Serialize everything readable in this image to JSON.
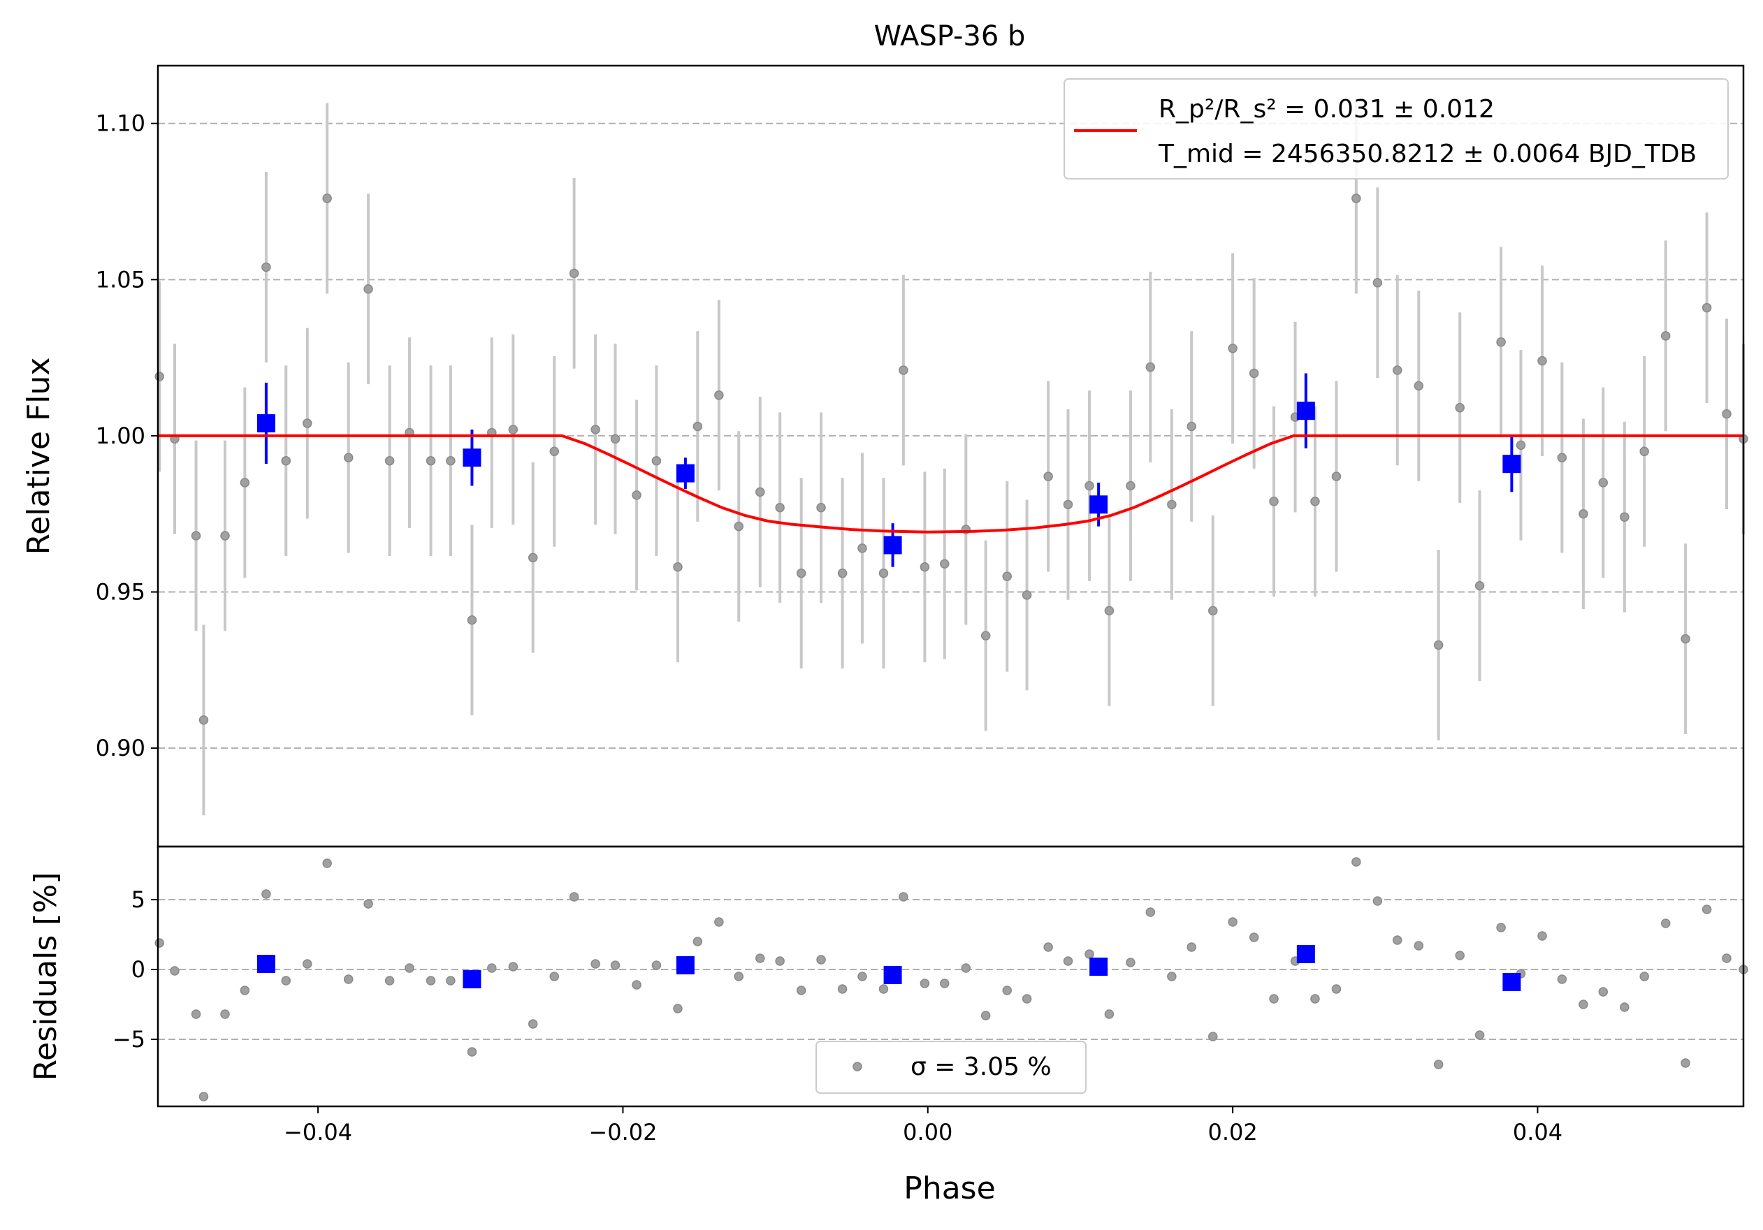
{
  "chart_data": [
    {
      "type": "scatter",
      "title": "WASP-36 b",
      "xlabel": "",
      "ylabel": "Relative Flux",
      "xlim": [
        -0.0505,
        0.0535
      ],
      "ylim": [
        0.8685,
        1.1185
      ],
      "yticks": [
        0.9,
        0.95,
        1.0,
        1.05,
        1.1
      ],
      "ytick_labels": [
        "0.90",
        "0.95",
        "1.00",
        "1.05",
        "1.10"
      ],
      "grid": "horizontal dashed",
      "legend_position": "upper right",
      "legend_lines": [
        "R_p²/R_s² = 0.031 ± 0.012",
        "T_mid = 2456350.8212 ± 0.0064 BJD_TDB"
      ],
      "colors": {
        "data": "#808080",
        "errorbar": "#c8c8c8",
        "binned": "#0000ff",
        "model": "#ff0000"
      },
      "series": [
        {
          "kind": "raw",
          "error": 0.0305,
          "points": [
            [
              -0.0504,
              1.019
            ],
            [
              -0.0494,
              0.999
            ],
            [
              -0.048,
              0.968
            ],
            [
              -0.0475,
              0.909
            ],
            [
              -0.0461,
              0.968
            ],
            [
              -0.0448,
              0.985
            ],
            [
              -0.0434,
              1.054
            ],
            [
              -0.0421,
              0.992
            ],
            [
              -0.0407,
              1.004
            ],
            [
              -0.0394,
              1.076
            ],
            [
              -0.038,
              0.993
            ],
            [
              -0.0367,
              1.047
            ],
            [
              -0.0353,
              0.992
            ],
            [
              -0.034,
              1.001
            ],
            [
              -0.0326,
              0.992
            ],
            [
              -0.0313,
              0.992
            ],
            [
              -0.0299,
              0.941
            ],
            [
              -0.0286,
              1.001
            ],
            [
              -0.0272,
              1.002
            ],
            [
              -0.0259,
              0.961
            ],
            [
              -0.0245,
              0.995
            ],
            [
              -0.0232,
              1.052
            ],
            [
              -0.0218,
              1.002
            ],
            [
              -0.0205,
              0.999
            ],
            [
              -0.0191,
              0.981
            ],
            [
              -0.0178,
              0.992
            ],
            [
              -0.0164,
              0.958
            ],
            [
              -0.0151,
              1.003
            ],
            [
              -0.0137,
              1.013
            ],
            [
              -0.0124,
              0.971
            ],
            [
              -0.011,
              0.982
            ],
            [
              -0.0097,
              0.977
            ],
            [
              -0.0083,
              0.956
            ],
            [
              -0.007,
              0.977
            ],
            [
              -0.0056,
              0.956
            ],
            [
              -0.0043,
              0.964
            ],
            [
              -0.0029,
              0.956
            ],
            [
              -0.0016,
              1.021
            ],
            [
              -0.0002,
              0.958
            ],
            [
              0.0011,
              0.959
            ],
            [
              0.0025,
              0.97
            ],
            [
              0.0038,
              0.936
            ],
            [
              0.0052,
              0.955
            ],
            [
              0.0065,
              0.949
            ],
            [
              0.0079,
              0.987
            ],
            [
              0.0092,
              0.978
            ],
            [
              0.0106,
              0.984
            ],
            [
              0.0119,
              0.944
            ],
            [
              0.0133,
              0.984
            ],
            [
              0.0146,
              1.022
            ],
            [
              0.016,
              0.978
            ],
            [
              0.0173,
              1.003
            ],
            [
              0.0187,
              0.944
            ],
            [
              0.02,
              1.028
            ],
            [
              0.0214,
              1.02
            ],
            [
              0.0227,
              0.979
            ],
            [
              0.0241,
              1.006
            ],
            [
              0.0254,
              0.979
            ],
            [
              0.0268,
              0.987
            ],
            [
              0.0281,
              1.076
            ],
            [
              0.0295,
              1.049
            ],
            [
              0.0308,
              1.021
            ],
            [
              0.0322,
              1.016
            ],
            [
              0.0335,
              0.933
            ],
            [
              0.0349,
              1.009
            ],
            [
              0.0362,
              0.952
            ],
            [
              0.0376,
              1.03
            ],
            [
              0.0389,
              0.997
            ],
            [
              0.0403,
              1.024
            ],
            [
              0.0416,
              0.993
            ],
            [
              0.043,
              0.975
            ],
            [
              0.0443,
              0.985
            ],
            [
              0.0457,
              0.974
            ],
            [
              0.047,
              0.995
            ],
            [
              0.0484,
              1.032
            ],
            [
              0.0497,
              0.935
            ],
            [
              0.0511,
              1.041
            ],
            [
              0.0524,
              1.007
            ],
            [
              0.0535,
              0.999
            ]
          ]
        },
        {
          "kind": "binned",
          "points": [
            [
              -0.0434,
              1.004,
              0.013
            ],
            [
              -0.0299,
              0.993,
              0.009
            ],
            [
              -0.0159,
              0.988,
              0.005
            ],
            [
              -0.0023,
              0.965,
              0.007
            ],
            [
              0.0112,
              0.978,
              0.007
            ],
            [
              0.0248,
              1.008,
              0.012
            ],
            [
              0.0383,
              0.991,
              0.009
            ]
          ]
        },
        {
          "kind": "model",
          "points": [
            [
              -0.0505,
              1.0
            ],
            [
              -0.024,
              1.0
            ],
            [
              -0.0225,
              0.9975
            ],
            [
              -0.021,
              0.9942
            ],
            [
              -0.0195,
              0.9907
            ],
            [
              -0.018,
              0.9871
            ],
            [
              -0.0165,
              0.9836
            ],
            [
              -0.015,
              0.9802
            ],
            [
              -0.0135,
              0.977
            ],
            [
              -0.012,
              0.9745
            ],
            [
              -0.0105,
              0.9727
            ],
            [
              -0.009,
              0.9717
            ],
            [
              -0.007,
              0.9708
            ],
            [
              -0.005,
              0.97
            ],
            [
              -0.003,
              0.9695
            ],
            [
              0.0,
              0.9692
            ],
            [
              0.003,
              0.9694
            ],
            [
              0.005,
              0.9698
            ],
            [
              0.007,
              0.9705
            ],
            [
              0.009,
              0.9716
            ],
            [
              0.0105,
              0.9727
            ],
            [
              0.012,
              0.9745
            ],
            [
              0.0135,
              0.977
            ],
            [
              0.015,
              0.9802
            ],
            [
              0.0165,
              0.9836
            ],
            [
              0.018,
              0.9871
            ],
            [
              0.0195,
              0.9907
            ],
            [
              0.021,
              0.9942
            ],
            [
              0.0225,
              0.9975
            ],
            [
              0.024,
              1.0
            ],
            [
              0.0535,
              1.0
            ]
          ]
        }
      ]
    },
    {
      "type": "scatter",
      "title": "",
      "xlabel": "Phase",
      "ylabel": "Residuals [%]",
      "xlim": [
        -0.0505,
        0.0535
      ],
      "ylim": [
        -9.8,
        8.8
      ],
      "xticks": [
        -0.04,
        -0.02,
        0.0,
        0.02,
        0.04
      ],
      "xtick_labels": [
        "−0.04",
        "−0.02",
        "0.00",
        "0.02",
        "0.04"
      ],
      "yticks": [
        -5,
        0,
        5
      ],
      "ytick_labels": [
        "−5",
        "0",
        "5"
      ],
      "grid": "horizontal dashed",
      "legend_position": "lower center",
      "legend_lines": [
        "σ = 3.05 %"
      ],
      "series": [
        {
          "kind": "raw",
          "points": [
            [
              -0.0504,
              1.9
            ],
            [
              -0.0494,
              -0.1
            ],
            [
              -0.048,
              -3.2
            ],
            [
              -0.0475,
              -9.1
            ],
            [
              -0.0461,
              -3.2
            ],
            [
              -0.0448,
              -1.5
            ],
            [
              -0.0434,
              5.4
            ],
            [
              -0.0421,
              -0.8
            ],
            [
              -0.0407,
              0.4
            ],
            [
              -0.0394,
              7.6
            ],
            [
              -0.038,
              -0.7
            ],
            [
              -0.0367,
              4.7
            ],
            [
              -0.0353,
              -0.8
            ],
            [
              -0.034,
              0.1
            ],
            [
              -0.0326,
              -0.8
            ],
            [
              -0.0313,
              -0.8
            ],
            [
              -0.0299,
              -5.9
            ],
            [
              -0.0286,
              0.1
            ],
            [
              -0.0272,
              0.2
            ],
            [
              -0.0259,
              -3.9
            ],
            [
              -0.0245,
              -0.5
            ],
            [
              -0.0232,
              5.2
            ],
            [
              -0.0218,
              0.4
            ],
            [
              -0.0205,
              0.3
            ],
            [
              -0.0191,
              -1.1
            ],
            [
              -0.0178,
              0.3
            ],
            [
              -0.0164,
              -2.8
            ],
            [
              -0.0151,
              2.0
            ],
            [
              -0.0137,
              3.4
            ],
            [
              -0.0124,
              -0.5
            ],
            [
              -0.011,
              0.8
            ],
            [
              -0.0097,
              0.6
            ],
            [
              -0.0083,
              -1.5
            ],
            [
              -0.007,
              0.7
            ],
            [
              -0.0056,
              -1.4
            ],
            [
              -0.0043,
              -0.5
            ],
            [
              -0.0029,
              -1.4
            ],
            [
              -0.0016,
              5.2
            ],
            [
              -0.0002,
              -1.0
            ],
            [
              0.0011,
              -1.0
            ],
            [
              0.0025,
              0.1
            ],
            [
              0.0038,
              -3.3
            ],
            [
              0.0052,
              -1.5
            ],
            [
              0.0065,
              -2.1
            ],
            [
              0.0079,
              1.6
            ],
            [
              0.0092,
              0.6
            ],
            [
              0.0106,
              1.1
            ],
            [
              0.0119,
              -3.2
            ],
            [
              0.0133,
              0.5
            ],
            [
              0.0146,
              4.1
            ],
            [
              0.016,
              -0.5
            ],
            [
              0.0173,
              1.6
            ],
            [
              0.0187,
              -4.8
            ],
            [
              0.02,
              3.4
            ],
            [
              0.0214,
              2.3
            ],
            [
              0.0227,
              -2.1
            ],
            [
              0.0241,
              0.6
            ],
            [
              0.0254,
              -2.1
            ],
            [
              0.0268,
              -1.4
            ],
            [
              0.0281,
              7.7
            ],
            [
              0.0295,
              4.9
            ],
            [
              0.0308,
              2.1
            ],
            [
              0.0322,
              1.7
            ],
            [
              0.0335,
              -6.8
            ],
            [
              0.0349,
              1.0
            ],
            [
              0.0362,
              -4.7
            ],
            [
              0.0376,
              3.0
            ],
            [
              0.0389,
              -0.3
            ],
            [
              0.0403,
              2.4
            ],
            [
              0.0416,
              -0.7
            ],
            [
              0.043,
              -2.5
            ],
            [
              0.0443,
              -1.6
            ],
            [
              0.0457,
              -2.7
            ],
            [
              0.047,
              -0.5
            ],
            [
              0.0484,
              3.3
            ],
            [
              0.0497,
              -6.7
            ],
            [
              0.0511,
              4.3
            ],
            [
              0.0524,
              0.8
            ],
            [
              0.0535,
              0.0
            ]
          ]
        },
        {
          "kind": "binned",
          "points": [
            [
              -0.0434,
              0.4
            ],
            [
              -0.0299,
              -0.7
            ],
            [
              -0.0159,
              0.3
            ],
            [
              -0.0023,
              -0.4
            ],
            [
              0.0112,
              0.2
            ],
            [
              0.0248,
              1.1
            ],
            [
              0.0383,
              -0.9
            ]
          ]
        }
      ]
    }
  ]
}
